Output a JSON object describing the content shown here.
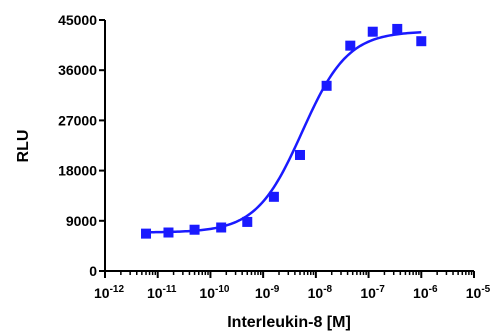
{
  "chart_data": {
    "type": "scatter",
    "title": "",
    "xlabel": "Interleukin-8 [M]",
    "ylabel": "RLU",
    "x_scale": "log",
    "xlim": [
      1e-12,
      1e-05
    ],
    "ylim": [
      0,
      45000
    ],
    "grid": false,
    "y_ticks": [
      0,
      9000,
      18000,
      27000,
      36000,
      45000
    ],
    "y_tick_labels": [
      "0",
      "9000",
      "18000",
      "27000",
      "36000",
      "45000"
    ],
    "x_ticks": [
      {
        "base": "10",
        "exp": "-12"
      },
      {
        "base": "10",
        "exp": "-11"
      },
      {
        "base": "10",
        "exp": "-10"
      },
      {
        "base": "10",
        "exp": "-9"
      },
      {
        "base": "10",
        "exp": "-8"
      },
      {
        "base": "10",
        "exp": "-7"
      },
      {
        "base": "10",
        "exp": "-6"
      },
      {
        "base": "10",
        "exp": "-5"
      }
    ],
    "colors": {
      "series": "#1a1aff",
      "axis": "#000000"
    },
    "series": [
      {
        "x": [
          6e-12,
          1.6e-11,
          5e-11,
          1.6e-10,
          5e-10,
          1.6e-09,
          5e-09,
          1.6e-08,
          4.5e-08,
          1.2e-07,
          3.5e-07,
          1e-06
        ],
        "y": [
          6700,
          6900,
          7400,
          7800,
          8800,
          13300,
          20800,
          33200,
          40400,
          42900,
          43400,
          41200
        ]
      }
    ],
    "fit": {
      "model": "four-parameter logistic",
      "bottom": 6900,
      "top": 43000,
      "ec50": 5.5e-09,
      "hill": 1.0
    }
  }
}
